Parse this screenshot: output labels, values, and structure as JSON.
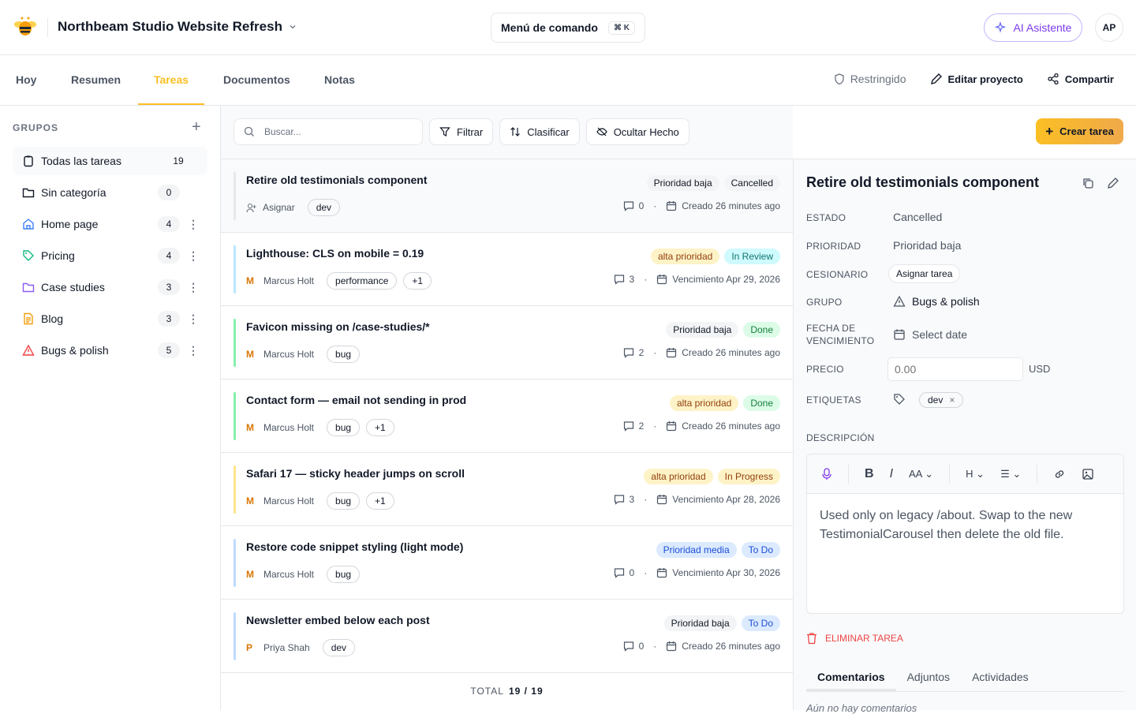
{
  "header": {
    "project_title": "Northbeam Studio Website Refresh",
    "command_label": "Menú de comando",
    "command_shortcut": "⌘ K",
    "ai_label": "AI Asistente",
    "avatar_initials": "AP"
  },
  "nav": {
    "tabs": [
      "Hoy",
      "Resumen",
      "Tareas",
      "Documentos",
      "Notas"
    ],
    "active": "Tareas",
    "restricted": "Restringido",
    "edit_project": "Editar proyecto",
    "share": "Compartir"
  },
  "sidebar": {
    "heading": "GRUPOS",
    "groups": [
      {
        "label": "Todas las tareas",
        "count": "19",
        "icon": "clipboard-icon",
        "color": "#111827"
      },
      {
        "label": "Sin categoría",
        "count": "0",
        "icon": "folder-icon",
        "color": "#111827"
      },
      {
        "label": "Home page",
        "count": "4",
        "icon": "home-icon",
        "color": "#3b82f6"
      },
      {
        "label": "Pricing",
        "count": "4",
        "icon": "tag-icon",
        "color": "#10b981"
      },
      {
        "label": "Case studies",
        "count": "3",
        "icon": "folder-open-icon",
        "color": "#8b5cf6"
      },
      {
        "label": "Blog",
        "count": "3",
        "icon": "document-icon",
        "color": "#f59e0b"
      },
      {
        "label": "Bugs & polish",
        "count": "5",
        "icon": "warning-icon",
        "color": "#ef4444"
      }
    ]
  },
  "toolbar": {
    "search_placeholder": "Buscar...",
    "filter": "Filtrar",
    "sort": "Clasificar",
    "hide_done": "Ocultar Hecho",
    "create": "Crear tarea"
  },
  "tasks": [
    {
      "title": "Retire old testimonials component",
      "priority": "Prioridad baja",
      "status": "Cancelled",
      "assignee": "Asignar",
      "avatar": "",
      "tags": [
        "dev"
      ],
      "comments": "0",
      "date": "Creado 26 minutes ago",
      "bar": "#e5e7eb"
    },
    {
      "title": "Lighthouse: CLS on mobile = 0.19",
      "priority": "alta prioridad",
      "status": "In Review",
      "assignee": "Marcus Holt",
      "avatar": "M",
      "tags": [
        "performance",
        "+1"
      ],
      "comments": "3",
      "date": "Vencimiento Apr 29, 2026",
      "bar": "#bae6fd"
    },
    {
      "title": "Favicon missing on /case-studies/*",
      "priority": "Prioridad baja",
      "status": "Done",
      "assignee": "Marcus Holt",
      "avatar": "M",
      "tags": [
        "bug"
      ],
      "comments": "2",
      "date": "Creado 26 minutes ago",
      "bar": "#86efac"
    },
    {
      "title": "Contact form — email not sending in prod",
      "priority": "alta prioridad",
      "status": "Done",
      "assignee": "Marcus Holt",
      "avatar": "M",
      "tags": [
        "bug",
        "+1"
      ],
      "comments": "2",
      "date": "Creado 26 minutes ago",
      "bar": "#86efac"
    },
    {
      "title": "Safari 17 — sticky header jumps on scroll",
      "priority": "alta prioridad",
      "status": "In Progress",
      "assignee": "Marcus Holt",
      "avatar": "M",
      "tags": [
        "bug",
        "+1"
      ],
      "comments": "3",
      "date": "Vencimiento Apr 28, 2026",
      "bar": "#fde68a"
    },
    {
      "title": "Restore code snippet styling (light mode)",
      "priority": "Prioridad media",
      "status": "To Do",
      "assignee": "Marcus Holt",
      "avatar": "M",
      "tags": [
        "bug"
      ],
      "comments": "0",
      "date": "Vencimiento Apr 30, 2026",
      "bar": "#bfdbfe"
    },
    {
      "title": "Newsletter embed below each post",
      "priority": "Prioridad baja",
      "status": "To Do",
      "assignee": "Priya Shah",
      "avatar": "P",
      "tags": [
        "dev"
      ],
      "comments": "0",
      "date": "Creado 26 minutes ago",
      "bar": "#bfdbfe"
    }
  ],
  "footer": {
    "label": "TOTAL",
    "value": "19 / 19"
  },
  "detail": {
    "title": "Retire old testimonials component",
    "labels": {
      "status": "ESTADO",
      "priority": "PRIORIDAD",
      "assignee": "CESIONARIO",
      "group": "GRUPO",
      "due": "FECHA DE VENCIMIENTO",
      "price": "PRECIO",
      "tags": "ETIQUETAS",
      "description": "DESCRIPCIÓN"
    },
    "status": "Cancelled",
    "priority": "Prioridad baja",
    "assignee_button": "Asignar tarea",
    "group": "Bugs & polish",
    "due": "Select date",
    "price_placeholder": "0.00",
    "currency": "USD",
    "tag": "dev",
    "description": "Used only on legacy /about. Swap to the new TestimonialCarousel then delete the old file.",
    "delete": "ELIMINAR TAREA",
    "tabs": [
      "Comentarios",
      "Adjuntos",
      "Actividades"
    ],
    "no_comments": "Aún no hay comentarios"
  }
}
